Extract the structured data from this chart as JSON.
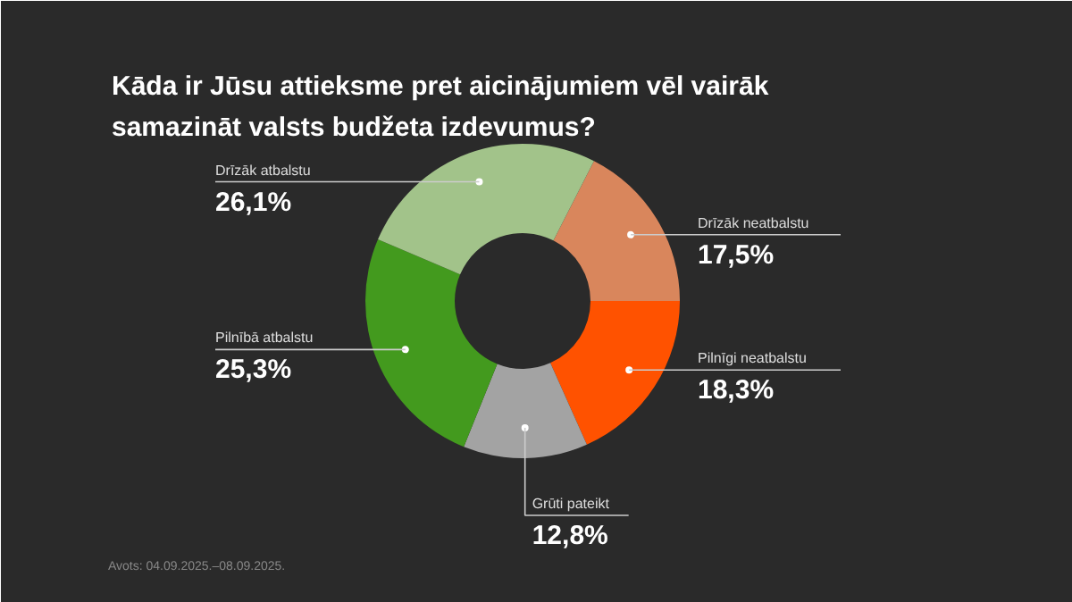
{
  "chart_data": {
    "type": "donut",
    "title": "Kāda ir Jūsu attieksme pret aicinājumiem vēl vairāk samazināt valsts budžeta izdevumus?",
    "categories": [
      "Drīzāk neatbalstu",
      "Pilnīgi neatbalstu",
      "Grūti pateikt",
      "Pilnībā atbalstu",
      "Drīzāk atbalstu"
    ],
    "values": [
      17.5,
      18.3,
      12.8,
      25.3,
      26.1
    ],
    "colors": [
      "#d9865c",
      "#ff5200",
      "#a3a3a3",
      "#439a1e",
      "#a2c38a"
    ],
    "value_labels": [
      "17,5%",
      "18,3%",
      "12,8%",
      "25,3%",
      "26,1%"
    ],
    "annotations": [
      "Avots: 04.09.2025.–08.09.2025."
    ]
  }
}
